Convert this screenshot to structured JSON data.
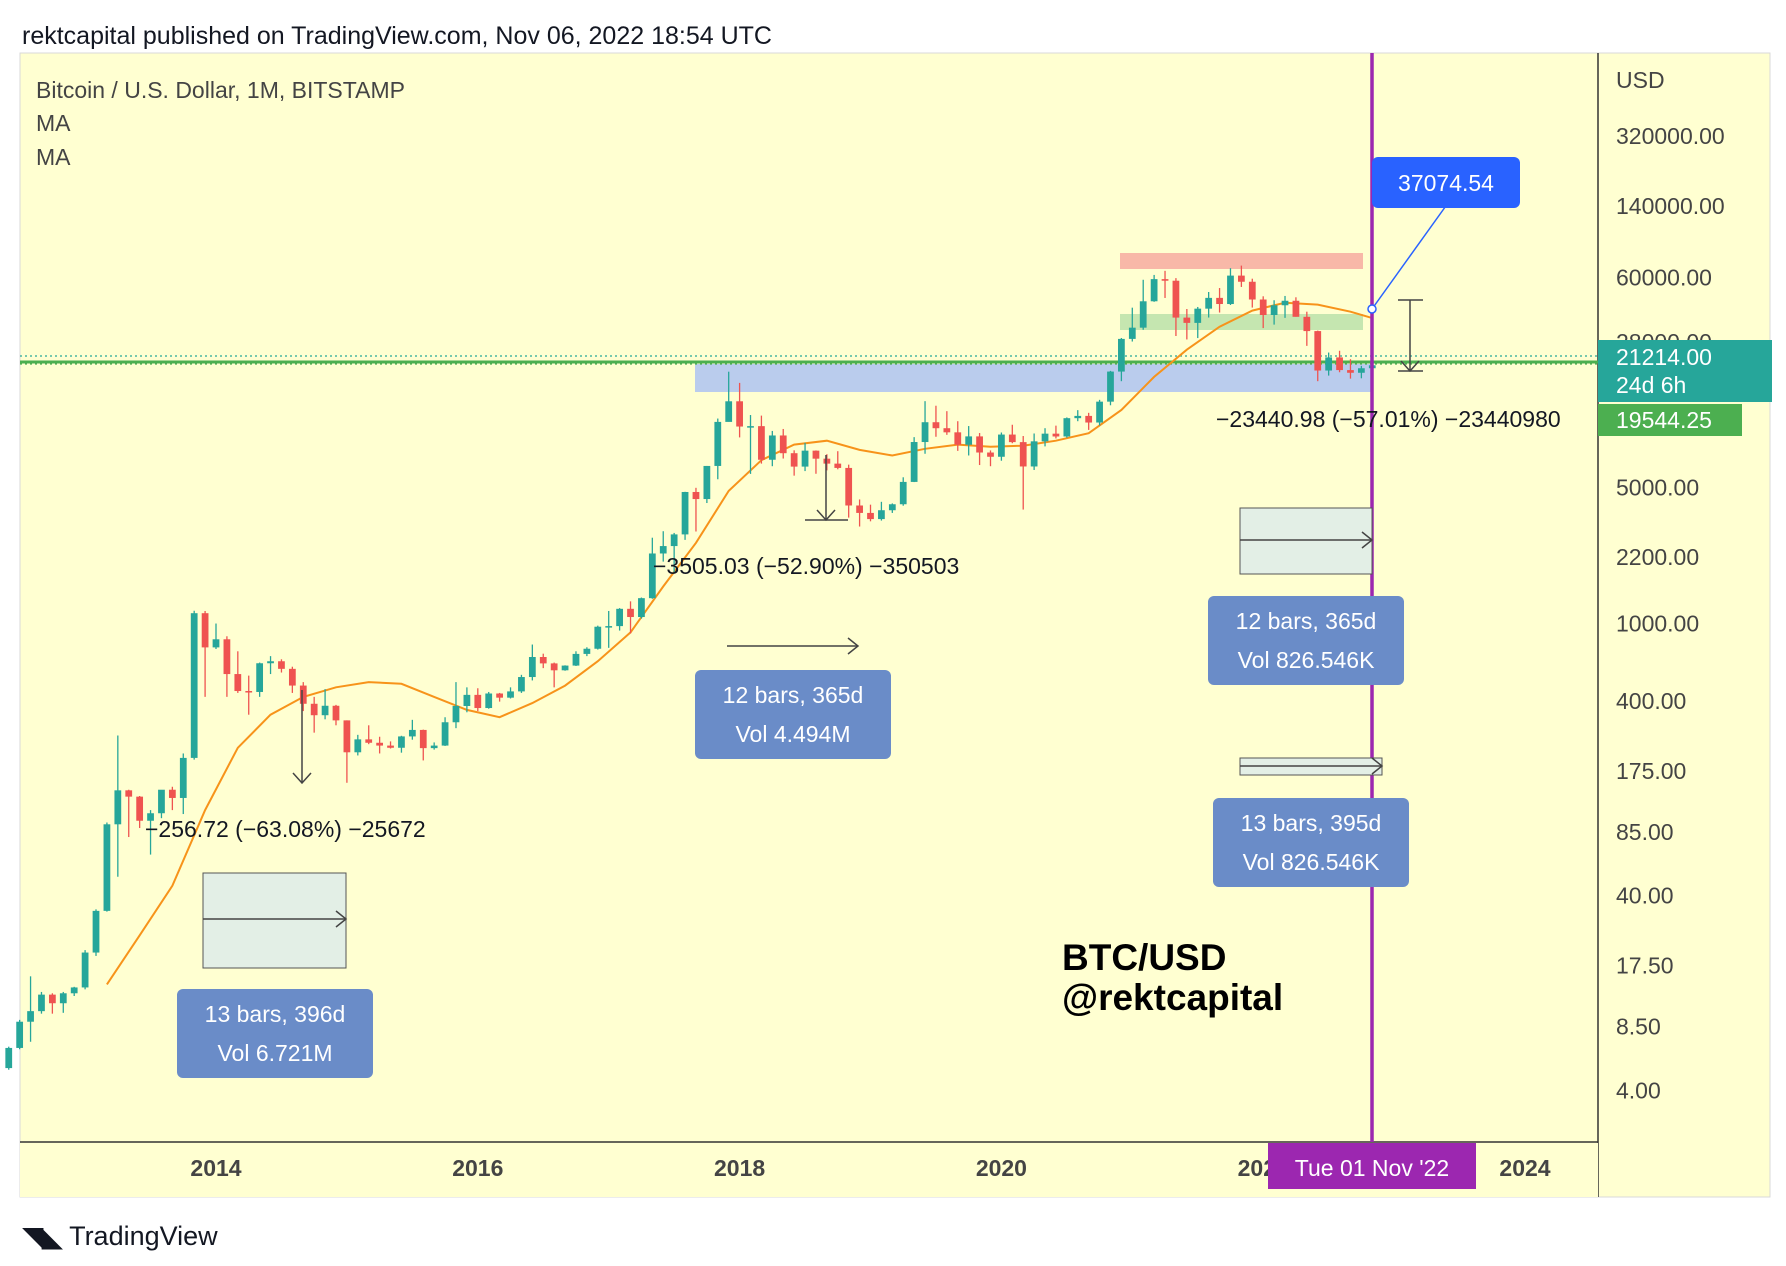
{
  "header": {
    "publisher_line": "rektcapital published on TradingView.com, Nov 06, 2022 18:54 UTC"
  },
  "footer": {
    "brand": "TradingView",
    "logo_icon": "tradingview-logo-icon"
  },
  "legend": {
    "symbol": "Bitcoin / U.S. Dollar, 1M, BITSTAMP",
    "indicators": [
      "MA",
      "MA"
    ]
  },
  "colors": {
    "background": "#ffffd1",
    "up": "#26a69a",
    "down": "#ef5350",
    "ma": "#f7931a",
    "support_line": "#4caf50",
    "vertical_line": "#9c27b0",
    "blue_zone": "#b3c6f0",
    "red_zone": "#f8b8a8",
    "green_zone": "#c5e6b0",
    "label_box": "#6a8cc8"
  },
  "chart_data": {
    "type": "candlestick",
    "title": "Bitcoin / U.S. Dollar, 1M, BITSTAMP",
    "ylabel": "USD",
    "y_scale": "log",
    "ylim": [
      2.5,
      620000
    ],
    "xlim": [
      "2012-06",
      "2024-12"
    ],
    "x_tick_labels": [
      "2014",
      "2016",
      "2018",
      "2020",
      "2022",
      "2024"
    ],
    "y_tick_labels": [
      "320000.00",
      "140000.00",
      "60000.00",
      "28000.00",
      "5000.00",
      "2200.00",
      "1000.00",
      "400.00",
      "175.00",
      "85.00",
      "40.00",
      "17.50",
      "8.50",
      "4.00"
    ],
    "price_labels": {
      "current": "21214.00",
      "countdown": "24d 6h",
      "previous": "19544.25",
      "ma_value": "37074.54"
    },
    "cursor_date_label": "Tue 01 Nov '22",
    "drawdowns": [
      "−256.72 (−63.08%) −25672",
      "−3505.03 (−52.90%) −350503",
      "−23440.98 (−57.01%) −23440980"
    ],
    "range_labels": [
      {
        "bars": "13 bars, 396d",
        "vol": "Vol 6.721M"
      },
      {
        "bars": "12 bars, 365d",
        "vol": "Vol 4.494M"
      },
      {
        "bars": "12 bars, 365d",
        "vol": "Vol 826.546K"
      },
      {
        "bars": "13 bars, 395d",
        "vol": "Vol 826.546K"
      }
    ],
    "watermark": [
      "BTC/USD",
      "@rektcapital"
    ],
    "moving_average": [
      [
        "2013-03",
        14
      ],
      [
        "2013-06",
        25
      ],
      [
        "2013-09",
        45
      ],
      [
        "2013-12",
        110
      ],
      [
        "2014-03",
        230
      ],
      [
        "2014-06",
        340
      ],
      [
        "2014-09",
        420
      ],
      [
        "2014-12",
        470
      ],
      [
        "2015-03",
        500
      ],
      [
        "2015-06",
        490
      ],
      [
        "2015-09",
        420
      ],
      [
        "2015-12",
        360
      ],
      [
        "2016-03",
        330
      ],
      [
        "2016-06",
        390
      ],
      [
        "2016-09",
        480
      ],
      [
        "2016-12",
        640
      ],
      [
        "2017-03",
        900
      ],
      [
        "2017-06",
        1550
      ],
      [
        "2017-09",
        2600
      ],
      [
        "2017-12",
        4800
      ],
      [
        "2018-03",
        6900
      ],
      [
        "2018-06",
        8300
      ],
      [
        "2018-09",
        8700
      ],
      [
        "2018-12",
        7800
      ],
      [
        "2019-03",
        7300
      ],
      [
        "2019-06",
        7900
      ],
      [
        "2019-09",
        8300
      ],
      [
        "2019-12",
        8100
      ],
      [
        "2020-03",
        8200
      ],
      [
        "2020-06",
        8700
      ],
      [
        "2020-09",
        9500
      ],
      [
        "2020-12",
        12500
      ],
      [
        "2021-03",
        18500
      ],
      [
        "2021-06",
        25500
      ],
      [
        "2021-09",
        33500
      ],
      [
        "2021-12",
        40500
      ],
      [
        "2022-03",
        44500
      ],
      [
        "2022-06",
        43500
      ],
      [
        "2022-09",
        40000
      ],
      [
        "2022-11",
        37074
      ]
    ],
    "candles": [
      [
        "2012-06",
        5.2,
        6.7,
        5.1,
        6.6
      ],
      [
        "2012-07",
        6.6,
        9.2,
        6.5,
        9.0
      ],
      [
        "2012-08",
        9.0,
        15.4,
        7.1,
        10.2
      ],
      [
        "2012-09",
        10.2,
        12.8,
        9.9,
        12.4
      ],
      [
        "2012-10",
        12.4,
        12.6,
        9.9,
        11.2
      ],
      [
        "2012-11",
        11.2,
        12.8,
        10.0,
        12.6
      ],
      [
        "2012-12",
        12.6,
        13.6,
        12.2,
        13.5
      ],
      [
        "2013-01",
        13.5,
        21.0,
        13.2,
        20.4
      ],
      [
        "2013-02",
        20.4,
        34.0,
        19.6,
        33.4
      ],
      [
        "2013-03",
        33.4,
        95.0,
        33.1,
        93.0
      ],
      [
        "2013-04",
        93.0,
        266.0,
        50.0,
        139.0
      ],
      [
        "2013-05",
        139.0,
        140.0,
        80.0,
        129.0
      ],
      [
        "2013-06",
        129.0,
        130.0,
        89.0,
        97.0
      ],
      [
        "2013-07",
        97.0,
        110.0,
        65.0,
        106.0
      ],
      [
        "2013-08",
        106.0,
        130.0,
        100.0,
        140.0
      ],
      [
        "2013-09",
        140.0,
        145.0,
        110.0,
        127.0
      ],
      [
        "2013-10",
        127.0,
        215.0,
        105.0,
        204.0
      ],
      [
        "2013-11",
        204.0,
        1163.0,
        200.0,
        1130.0
      ],
      [
        "2013-12",
        1130.0,
        1160.0,
        420.0,
        754.0
      ],
      [
        "2014-01",
        754.0,
        1000.0,
        740.0,
        830.0
      ],
      [
        "2014-02",
        830.0,
        860.0,
        420.0,
        550.0
      ],
      [
        "2014-03",
        550.0,
        720.0,
        440.0,
        450.0
      ],
      [
        "2014-04",
        450.0,
        540.0,
        340.0,
        445.0
      ],
      [
        "2014-05",
        445.0,
        630.0,
        420.0,
        625.0
      ],
      [
        "2014-06",
        625.0,
        680.0,
        550.0,
        640.0
      ],
      [
        "2014-07",
        640.0,
        655.0,
        560.0,
        585.0
      ],
      [
        "2014-08",
        585.0,
        600.0,
        440.0,
        480.0
      ],
      [
        "2014-09",
        480.0,
        500.0,
        355.0,
        387.0
      ],
      [
        "2014-10",
        387.0,
        420.0,
        275.0,
        338.0
      ],
      [
        "2014-11",
        338.0,
        460.0,
        322.0,
        378.0
      ],
      [
        "2014-12",
        378.0,
        382.0,
        300.0,
        318.0
      ],
      [
        "2015-01",
        318.0,
        318.0,
        152.0,
        218.0
      ],
      [
        "2015-02",
        218.0,
        268.0,
        210.0,
        254.0
      ],
      [
        "2015-03",
        254.0,
        300.0,
        240.0,
        244.0
      ],
      [
        "2015-04",
        244.0,
        262.0,
        215.0,
        236.0
      ],
      [
        "2015-05",
        236.0,
        248.0,
        228.0,
        230.0
      ],
      [
        "2015-06",
        230.0,
        265.0,
        217.0,
        263.0
      ],
      [
        "2015-07",
        263.0,
        320.0,
        253.0,
        284.0
      ],
      [
        "2015-08",
        284.0,
        285.0,
        198.0,
        229.0
      ],
      [
        "2015-09",
        229.0,
        245.0,
        225.0,
        236.0
      ],
      [
        "2015-10",
        236.0,
        330.0,
        235.0,
        311.0
      ],
      [
        "2015-11",
        311.0,
        500.0,
        290.0,
        377.0
      ],
      [
        "2015-12",
        377.0,
        470.0,
        350.0,
        430.0
      ],
      [
        "2016-01",
        430.0,
        465.0,
        355.0,
        368.0
      ],
      [
        "2016-02",
        368.0,
        445.0,
        365.0,
        437.0
      ],
      [
        "2016-03",
        437.0,
        440.0,
        397.0,
        416.0
      ],
      [
        "2016-04",
        416.0,
        470.0,
        412.0,
        448.0
      ],
      [
        "2016-05",
        448.0,
        545.0,
        440.0,
        531.0
      ],
      [
        "2016-06",
        531.0,
        780.0,
        510.0,
        673.0
      ],
      [
        "2016-07",
        673.0,
        700.0,
        590.0,
        624.0
      ],
      [
        "2016-08",
        624.0,
        630.0,
        470.0,
        575.0
      ],
      [
        "2016-09",
        575.0,
        610.0,
        572.0,
        608.0
      ],
      [
        "2016-10",
        608.0,
        720.0,
        605.0,
        698.0
      ],
      [
        "2016-11",
        698.0,
        755.0,
        680.0,
        742.0
      ],
      [
        "2016-12",
        742.0,
        975.0,
        735.0,
        963.0
      ],
      [
        "2017-01",
        963.0,
        1160.0,
        750.0,
        970.0
      ],
      [
        "2017-02",
        970.0,
        1200.0,
        920.0,
        1190.0
      ],
      [
        "2017-03",
        1190.0,
        1300.0,
        890.0,
        1080.0
      ],
      [
        "2017-04",
        1080.0,
        1360.0,
        1060.0,
        1350.0
      ],
      [
        "2017-05",
        1350.0,
        2760.0,
        1340.0,
        2290.0
      ],
      [
        "2017-06",
        2290.0,
        2980.0,
        2080.0,
        2500.0
      ],
      [
        "2017-07",
        2500.0,
        2920.0,
        1830.0,
        2870.0
      ],
      [
        "2017-08",
        2870.0,
        4750.0,
        2690.0,
        4740.0
      ],
      [
        "2017-09",
        4740.0,
        4980.0,
        2970.0,
        4360.0
      ],
      [
        "2017-10",
        4360.0,
        6450.0,
        4160.0,
        6450.0
      ],
      [
        "2017-11",
        6450.0,
        11300.0,
        5510.0,
        10860.0
      ],
      [
        "2017-12",
        10860.0,
        19670.0,
        10900.0,
        13860.0
      ],
      [
        "2018-01",
        13860.0,
        17230.0,
        9040.0,
        10280.0
      ],
      [
        "2018-02",
        10280.0,
        11780.0,
        5870.0,
        10330.0
      ],
      [
        "2018-03",
        10330.0,
        11700.0,
        6630.0,
        6940.0
      ],
      [
        "2018-04",
        6940.0,
        9760.0,
        6430.0,
        9250.0
      ],
      [
        "2018-05",
        9250.0,
        9990.0,
        7040.0,
        7500.0
      ],
      [
        "2018-06",
        7500.0,
        7760.0,
        5750.0,
        6400.0
      ],
      [
        "2018-07",
        6400.0,
        8480.0,
        6070.0,
        7730.0
      ],
      [
        "2018-08",
        7730.0,
        7750.0,
        5880.0,
        7030.0
      ],
      [
        "2018-09",
        7030.0,
        7410.0,
        6120.0,
        6630.0
      ],
      [
        "2018-10",
        6630.0,
        7680.0,
        6200.0,
        6300.0
      ],
      [
        "2018-11",
        6300.0,
        6550.0,
        3500.0,
        4040.0
      ],
      [
        "2018-12",
        4040.0,
        4340.0,
        3150.0,
        3700.0
      ],
      [
        "2019-01",
        3700.0,
        4080.0,
        3350.0,
        3440.0
      ],
      [
        "2019-02",
        3440.0,
        4220.0,
        3380.0,
        3820.0
      ],
      [
        "2019-03",
        3820.0,
        4140.0,
        3700.0,
        4100.0
      ],
      [
        "2019-04",
        4100.0,
        5640.0,
        4030.0,
        5340.0
      ],
      [
        "2019-05",
        5340.0,
        9070.0,
        5330.0,
        8560.0
      ],
      [
        "2019-06",
        8560.0,
        13880.0,
        7450.0,
        10820.0
      ],
      [
        "2019-07",
        10820.0,
        13150.0,
        9110.0,
        10080.0
      ],
      [
        "2019-08",
        10080.0,
        12330.0,
        9320.0,
        9600.0
      ],
      [
        "2019-09",
        9600.0,
        10950.0,
        7710.0,
        8290.0
      ],
      [
        "2019-10",
        8290.0,
        10340.0,
        7300.0,
        9150.0
      ],
      [
        "2019-11",
        9150.0,
        9520.0,
        6520.0,
        7560.0
      ],
      [
        "2019-12",
        7560.0,
        7750.0,
        6430.0,
        7190.0
      ],
      [
        "2020-01",
        7190.0,
        9580.0,
        6860.0,
        9350.0
      ],
      [
        "2020-02",
        9350.0,
        10500.0,
        8440.0,
        8550.0
      ],
      [
        "2020-03",
        8550.0,
        9190.0,
        3850.0,
        6410.0
      ],
      [
        "2020-04",
        6410.0,
        9470.0,
        6150.0,
        8630.0
      ],
      [
        "2020-05",
        8630.0,
        10080.0,
        8130.0,
        9450.0
      ],
      [
        "2020-06",
        9450.0,
        10390.0,
        8930.0,
        9140.0
      ],
      [
        "2020-07",
        9140.0,
        11450.0,
        9010.0,
        11350.0
      ],
      [
        "2020-08",
        11350.0,
        12480.0,
        10950.0,
        11660.0
      ],
      [
        "2020-09",
        11660.0,
        12090.0,
        9880.0,
        10780.0
      ],
      [
        "2020-10",
        10780.0,
        14100.0,
        10410.0,
        13800.0
      ],
      [
        "2020-11",
        13800.0,
        19860.0,
        13220.0,
        19700.0
      ],
      [
        "2020-12",
        19700.0,
        29300.0,
        17580.0,
        28990.0
      ],
      [
        "2021-01",
        28990.0,
        41950.0,
        28100.0,
        33110.0
      ],
      [
        "2021-02",
        33110.0,
        58350.0,
        32300.0,
        45240.0
      ],
      [
        "2021-03",
        45240.0,
        61790.0,
        44960.0,
        58800.0
      ],
      [
        "2021-04",
        58800.0,
        64850.0,
        47050.0,
        57700.0
      ],
      [
        "2021-05",
        57700.0,
        59500.0,
        30000.0,
        37300.0
      ],
      [
        "2021-06",
        37300.0,
        41300.0,
        28800.0,
        35040.0
      ],
      [
        "2021-07",
        35040.0,
        42300.0,
        29280.0,
        41460.0
      ],
      [
        "2021-08",
        41460.0,
        50500.0,
        37330.0,
        47100.0
      ],
      [
        "2021-09",
        47100.0,
        52920.0,
        39600.0,
        43800.0
      ],
      [
        "2021-10",
        43800.0,
        66930.0,
        43300.0,
        61300.0
      ],
      [
        "2021-11",
        61300.0,
        69000.0,
        53600.0,
        57000.0
      ],
      [
        "2021-12",
        57000.0,
        59100.0,
        42000.0,
        46200.0
      ],
      [
        "2022-01",
        46200.0,
        47990.0,
        32950.0,
        38470.0
      ],
      [
        "2022-02",
        38470.0,
        45800.0,
        34330.0,
        43160.0
      ],
      [
        "2022-03",
        43160.0,
        48190.0,
        37180.0,
        45520.0
      ],
      [
        "2022-04",
        45520.0,
        47430.0,
        37710.0,
        37650.0
      ],
      [
        "2022-05",
        37650.0,
        40000.0,
        26700.0,
        31800.0
      ],
      [
        "2022-06",
        31800.0,
        31980.0,
        17580.0,
        19940.0
      ],
      [
        "2022-07",
        19940.0,
        24670.0,
        18780.0,
        23290.0
      ],
      [
        "2022-08",
        23290.0,
        25200.0,
        19540.0,
        20050.0
      ],
      [
        "2022-09",
        20050.0,
        22800.0,
        18120.0,
        19420.0
      ],
      [
        "2022-10",
        19420.0,
        21080.0,
        18190.0,
        20490.0
      ],
      [
        "2022-11",
        20490.0,
        21470.0,
        20050.0,
        21214.0
      ]
    ]
  }
}
